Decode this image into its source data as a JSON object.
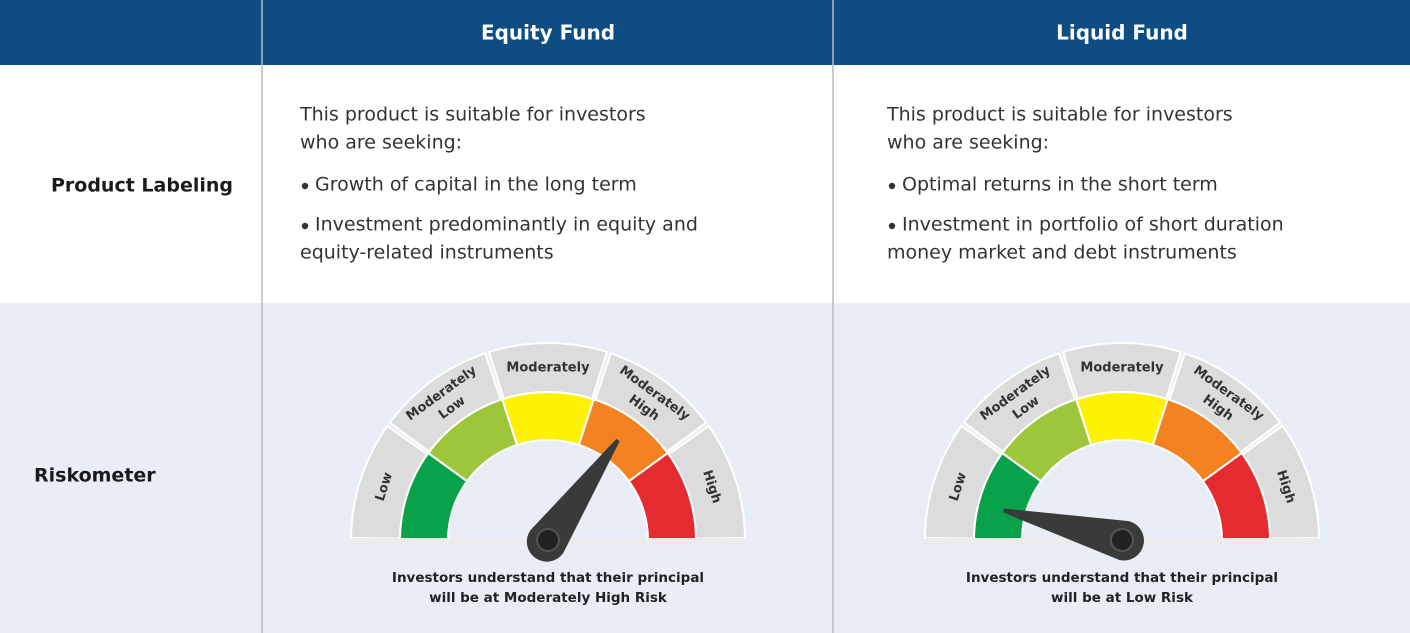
{
  "header": {
    "columns": [
      "Equity Fund",
      "Liquid Fund"
    ]
  },
  "rows": [
    {
      "label": "Product Labeling"
    },
    {
      "label": "Riskometer"
    }
  ],
  "funds": [
    {
      "intro": [
        "This product is suitable for investors",
        "who are seeking:"
      ],
      "bullets": [
        [
          "Growth of capital in the long term"
        ],
        [
          "Investment predominantly in equity and",
          "equity-related instruments"
        ]
      ],
      "caption": [
        "Investors understand that their principal",
        "will be at Moderately High Risk"
      ]
    },
    {
      "intro": [
        "This product is suitable for investors",
        "who are seeking:"
      ],
      "bullets": [
        [
          "Optimal returns in the short term"
        ],
        [
          "Investment in portfolio of short duration",
          "money market and debt instruments"
        ]
      ],
      "caption": [
        "Investors understand that their principal",
        "will be at Low Risk"
      ]
    }
  ],
  "riskometer_levels": [
    [
      "Low"
    ],
    [
      "Moderately",
      "Low"
    ],
    [
      "Moderately"
    ],
    [
      "Moderately",
      "High"
    ],
    [
      "High"
    ]
  ]
}
